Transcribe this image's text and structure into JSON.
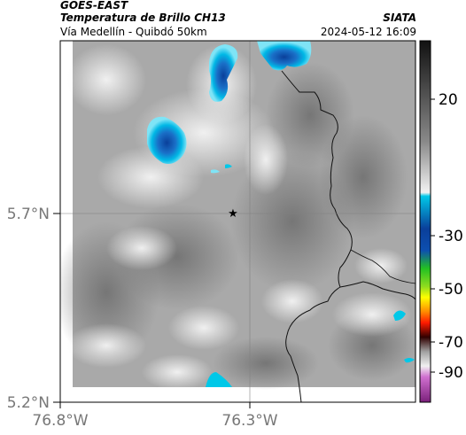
{
  "header": {
    "satellite": "GOES-EAST",
    "product": "Temperatura de Brillo CH13",
    "route": "Vía Medellín - Quibdó 50km",
    "organization": "SIATA",
    "timestamp": "2024-05-12 16:09"
  },
  "map": {
    "lon_labels": [
      "76.8°W",
      "76.3°W"
    ],
    "lat_labels": [
      "5.7°N",
      "5.2°N"
    ],
    "marker": "star-marker"
  },
  "colorbar": {
    "tick_labels": [
      "20",
      "-30",
      "-50",
      "-70",
      "-90"
    ],
    "colors": {
      "warm_top": "#111111",
      "gray_mid": "#8a8a8a",
      "light": "#f2f2f2",
      "cyan": "#00c8e8",
      "blue": "#0a3f9a",
      "green": "#22c022",
      "yellow": "#ffff00",
      "red": "#ff1a00",
      "dark": "#300000",
      "magenta": "#c040c0"
    }
  }
}
